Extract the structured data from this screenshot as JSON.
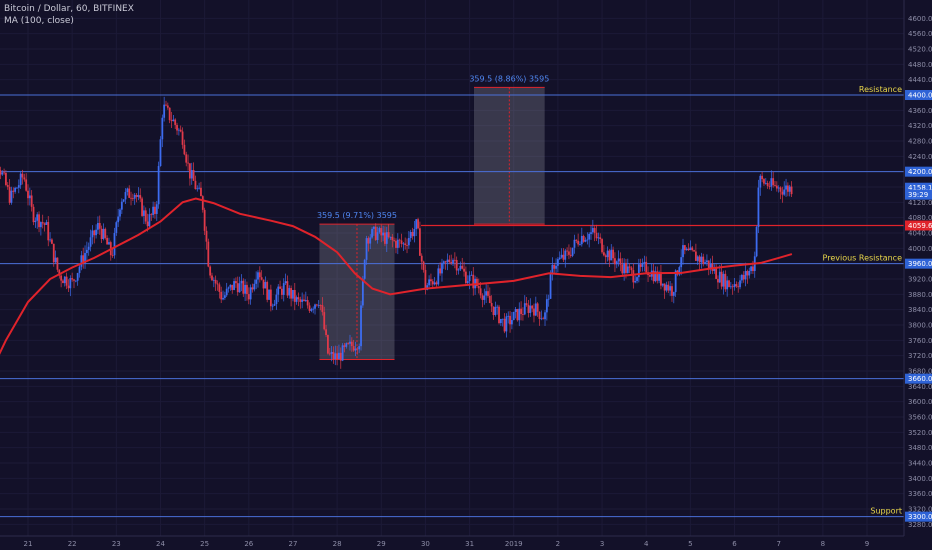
{
  "chart_data": {
    "type": "candlestick",
    "title": "Bitcoin / Dollar, 60, BITFINEX",
    "indicator_label": "MA (100, close)",
    "ylim": [
      3260,
      4640
    ],
    "price_ticks": [
      4600,
      4560,
      4520,
      4480,
      4440,
      4400,
      4360,
      4320,
      4280,
      4240,
      4200,
      4160,
      4120,
      4080,
      4040,
      4000,
      3960,
      3920,
      3880,
      3840,
      3800,
      3760,
      3720,
      3680,
      3640,
      3600,
      3560,
      3520,
      3480,
      3440,
      3400,
      3360,
      3320,
      3280
    ],
    "x_ticks": [
      {
        "label": "21",
        "day": 21
      },
      {
        "label": "22",
        "day": 22
      },
      {
        "label": "23",
        "day": 23
      },
      {
        "label": "24",
        "day": 24
      },
      {
        "label": "25",
        "day": 25
      },
      {
        "label": "26",
        "day": 26
      },
      {
        "label": "27",
        "day": 27
      },
      {
        "label": "28",
        "day": 28
      },
      {
        "label": "29",
        "day": 29
      },
      {
        "label": "30",
        "day": 30
      },
      {
        "label": "31",
        "day": 31
      },
      {
        "label": "2019",
        "day": 32
      },
      {
        "label": "2",
        "day": 33
      },
      {
        "label": "3",
        "day": 34
      },
      {
        "label": "4",
        "day": 35
      },
      {
        "label": "5",
        "day": 36
      },
      {
        "label": "6",
        "day": 37
      },
      {
        "label": "7",
        "day": 38
      },
      {
        "label": "8",
        "day": 39
      },
      {
        "label": "9",
        "day": 40
      }
    ],
    "horizontal_levels": [
      {
        "price": 4400,
        "label": "Resistance",
        "tag": "4400.0",
        "color": "#4a6fd8"
      },
      {
        "price": 4200,
        "label": "",
        "tag": "4200.0",
        "color": "#4a6fd8"
      },
      {
        "price": 3960,
        "label": "Previous Resistance",
        "tag": "3960.0",
        "color": "#4a6fd8"
      },
      {
        "price": 3660,
        "label": "",
        "tag": "3660.0",
        "color": "#4a6fd8"
      },
      {
        "price": 3300,
        "label": "Support",
        "tag": "3300.0",
        "color": "#4a6fd8"
      }
    ],
    "price_tags": [
      {
        "price": 4158.1,
        "text": "4158.1",
        "color": "#2f63d6"
      },
      {
        "price": 4140,
        "text": "39:29",
        "color": "#2f63d6"
      },
      {
        "price": 4059.6,
        "text": "4059.6",
        "color": "#e0232b"
      }
    ],
    "red_level": {
      "price": 4059.6,
      "from_day": 29.9
    },
    "measure_boxes": [
      {
        "label": "359.5 (9.71%) 3595",
        "from_day": 27.6,
        "to_day": 29.3,
        "low": 3710,
        "high": 4063
      },
      {
        "label": "359.5 (8.86%) 3595",
        "from_day": 31.1,
        "to_day": 32.7,
        "low": 4063,
        "high": 4420
      }
    ],
    "ma_series": [
      {
        "day": 20.0,
        "price": 3640
      },
      {
        "day": 20.5,
        "price": 3760
      },
      {
        "day": 21.0,
        "price": 3860
      },
      {
        "day": 21.5,
        "price": 3920
      },
      {
        "day": 22.0,
        "price": 3950
      },
      {
        "day": 22.5,
        "price": 3975
      },
      {
        "day": 23.0,
        "price": 4005
      },
      {
        "day": 23.5,
        "price": 4035
      },
      {
        "day": 24.0,
        "price": 4070
      },
      {
        "day": 24.5,
        "price": 4120
      },
      {
        "day": 24.8,
        "price": 4130
      },
      {
        "day": 25.2,
        "price": 4118
      },
      {
        "day": 25.8,
        "price": 4090
      },
      {
        "day": 26.5,
        "price": 4072
      },
      {
        "day": 27.0,
        "price": 4058
      },
      {
        "day": 27.5,
        "price": 4030
      },
      {
        "day": 28.0,
        "price": 3990
      },
      {
        "day": 28.4,
        "price": 3935
      },
      {
        "day": 28.8,
        "price": 3895
      },
      {
        "day": 29.2,
        "price": 3880
      },
      {
        "day": 30.0,
        "price": 3895
      },
      {
        "day": 31.0,
        "price": 3905
      },
      {
        "day": 32.0,
        "price": 3915
      },
      {
        "day": 32.8,
        "price": 3935
      },
      {
        "day": 33.5,
        "price": 3928
      },
      {
        "day": 34.2,
        "price": 3925
      },
      {
        "day": 35.0,
        "price": 3935
      },
      {
        "day": 35.8,
        "price": 3936
      },
      {
        "day": 36.5,
        "price": 3948
      },
      {
        "day": 37.0,
        "price": 3955
      },
      {
        "day": 37.6,
        "price": 3962
      },
      {
        "day": 38.0,
        "price": 3975
      },
      {
        "day": 38.3,
        "price": 3985
      }
    ],
    "price_path": [
      {
        "day": 20.0,
        "price": 4170
      },
      {
        "day": 20.3,
        "price": 4230
      },
      {
        "day": 20.6,
        "price": 4130
      },
      {
        "day": 20.9,
        "price": 4190
      },
      {
        "day": 21.1,
        "price": 4090
      },
      {
        "day": 21.4,
        "price": 4060
      },
      {
        "day": 21.7,
        "price": 3930
      },
      {
        "day": 22.0,
        "price": 3910
      },
      {
        "day": 22.3,
        "price": 3990
      },
      {
        "day": 22.6,
        "price": 4060
      },
      {
        "day": 22.9,
        "price": 3980
      },
      {
        "day": 23.1,
        "price": 4130
      },
      {
        "day": 23.4,
        "price": 4150
      },
      {
        "day": 23.7,
        "price": 4070
      },
      {
        "day": 23.9,
        "price": 4100
      },
      {
        "day": 24.05,
        "price": 4370
      },
      {
        "day": 24.3,
        "price": 4330
      },
      {
        "day": 24.5,
        "price": 4290
      },
      {
        "day": 24.65,
        "price": 4200
      },
      {
        "day": 24.8,
        "price": 4160
      },
      {
        "day": 24.95,
        "price": 4120
      },
      {
        "day": 25.1,
        "price": 3950
      },
      {
        "day": 25.4,
        "price": 3870
      },
      {
        "day": 25.7,
        "price": 3910
      },
      {
        "day": 26.0,
        "price": 3880
      },
      {
        "day": 26.2,
        "price": 3950
      },
      {
        "day": 26.5,
        "price": 3860
      },
      {
        "day": 26.8,
        "price": 3900
      },
      {
        "day": 27.1,
        "price": 3860
      },
      {
        "day": 27.4,
        "price": 3850
      },
      {
        "day": 27.6,
        "price": 3870
      },
      {
        "day": 27.8,
        "price": 3720
      },
      {
        "day": 28.0,
        "price": 3715
      },
      {
        "day": 28.2,
        "price": 3735
      },
      {
        "day": 28.5,
        "price": 3760
      },
      {
        "day": 28.65,
        "price": 4030
      },
      {
        "day": 28.9,
        "price": 4040
      },
      {
        "day": 29.2,
        "price": 4020
      },
      {
        "day": 29.5,
        "price": 4010
      },
      {
        "day": 29.8,
        "price": 4060
      },
      {
        "day": 30.0,
        "price": 3900
      },
      {
        "day": 30.3,
        "price": 3930
      },
      {
        "day": 30.6,
        "price": 3980
      },
      {
        "day": 30.9,
        "price": 3930
      },
      {
        "day": 31.2,
        "price": 3900
      },
      {
        "day": 31.5,
        "price": 3850
      },
      {
        "day": 31.8,
        "price": 3800
      },
      {
        "day": 32.1,
        "price": 3830
      },
      {
        "day": 32.4,
        "price": 3850
      },
      {
        "day": 32.7,
        "price": 3820
      },
      {
        "day": 32.9,
        "price": 3960
      },
      {
        "day": 33.2,
        "price": 3980
      },
      {
        "day": 33.5,
        "price": 4030
      },
      {
        "day": 33.8,
        "price": 4040
      },
      {
        "day": 34.1,
        "price": 3990
      },
      {
        "day": 34.4,
        "price": 3960
      },
      {
        "day": 34.7,
        "price": 3930
      },
      {
        "day": 35.0,
        "price": 3950
      },
      {
        "day": 35.3,
        "price": 3920
      },
      {
        "day": 35.6,
        "price": 3890
      },
      {
        "day": 35.8,
        "price": 3990
      },
      {
        "day": 36.1,
        "price": 3980
      },
      {
        "day": 36.4,
        "price": 3960
      },
      {
        "day": 36.7,
        "price": 3920
      },
      {
        "day": 36.9,
        "price": 3905
      },
      {
        "day": 37.2,
        "price": 3920
      },
      {
        "day": 37.45,
        "price": 3960
      },
      {
        "day": 37.55,
        "price": 4180
      },
      {
        "day": 37.7,
        "price": 4170
      },
      {
        "day": 37.9,
        "price": 4160
      },
      {
        "day": 38.1,
        "price": 4155
      },
      {
        "day": 38.3,
        "price": 4158
      }
    ]
  }
}
